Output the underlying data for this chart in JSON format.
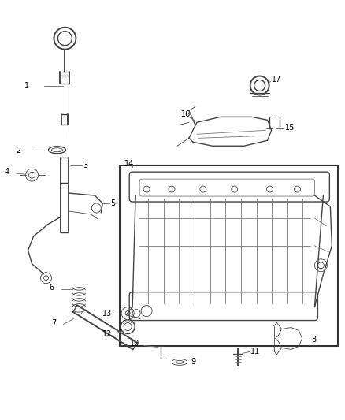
{
  "background_color": "#ffffff",
  "line_color": "#777777",
  "dark_line_color": "#444444",
  "fig_width": 4.38,
  "fig_height": 5.33,
  "dpi": 100,
  "label_fontsize": 7.0,
  "lw_thin": 0.6,
  "lw_med": 1.0,
  "lw_thick": 1.4
}
